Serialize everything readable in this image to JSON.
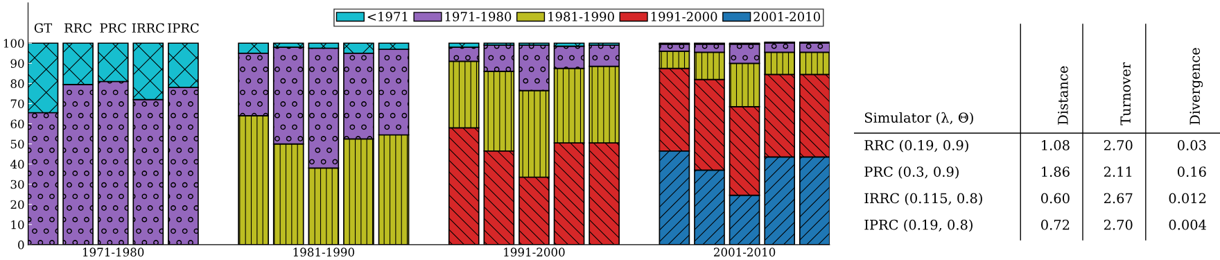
{
  "chart_data": [
    {
      "type": "bar",
      "stacked": true,
      "legend": "top right",
      "grid": false,
      "categories": [
        "GT",
        "RRC",
        "PRC",
        "IRRC",
        "IPRC",
        null,
        null,
        null,
        null,
        null,
        null,
        null,
        null,
        null,
        null,
        null,
        null,
        null,
        null,
        null,
        null,
        null,
        null
      ],
      "series": [
        {
          "name": "2001-2010",
          "color": "#1f77b4",
          "values": [
            null,
            null,
            null,
            null,
            null,
            null,
            null,
            null,
            null,
            null,
            null,
            null,
            null,
            null,
            null,
            null,
            null,
            null,
            46.5,
            37,
            24.5,
            43.5,
            43.5
          ]
        },
        {
          "name": "1991-2000",
          "color": "#d62728",
          "values": [
            null,
            null,
            null,
            null,
            null,
            null,
            null,
            null,
            null,
            null,
            null,
            null,
            58,
            46.5,
            33.5,
            50.5,
            50.5,
            null,
            41,
            45,
            44,
            41,
            41
          ]
        },
        {
          "name": "1981-1990",
          "color": "#bcbd22",
          "values": [
            null,
            null,
            null,
            null,
            null,
            null,
            64,
            50,
            38,
            52.5,
            54.5,
            null,
            33,
            39.5,
            43,
            37,
            38,
            null,
            8.5,
            13.5,
            21.5,
            11,
            11
          ]
        },
        {
          "name": "1971-1980",
          "color": "#9467bd",
          "values": [
            65.5,
            79.5,
            81,
            72,
            78,
            null,
            31,
            48,
            59.5,
            42.5,
            42.5,
            null,
            7,
            13,
            22.5,
            11,
            10.5,
            null,
            3.5,
            4,
            9.5,
            4.5,
            4.5
          ]
        },
        {
          "name": "<1971",
          "color": "#17becf",
          "values": [
            34.5,
            20.5,
            19,
            28,
            22,
            null,
            5,
            2,
            2.5,
            5,
            3,
            null,
            2,
            1,
            1,
            1.5,
            1,
            null,
            0.5,
            0.5,
            0.5,
            0.5,
            0.5
          ]
        }
      ],
      "ylim": [
        0,
        120
      ],
      "yticks": [
        0,
        10,
        20,
        30,
        40,
        50,
        60,
        70,
        80,
        90,
        100
      ],
      "annotations": [
        "1971-1980",
        "1981-1990",
        "1991-2000",
        "2001-2010"
      ]
    },
    {
      "type": "other",
      "categories": [
        "Simulator (λ, Θ)",
        "Distance",
        "Turnover",
        "Divergence"
      ],
      "y_categories": [
        "RRC (0.19, 0.9)",
        "PRC (0.3, 0.9)",
        "IRRC (0.115, 0.8)",
        "IPRC (0.19, 0.8)"
      ],
      "cell_labels": [
        [
          "1.08",
          "2.70",
          "0.03"
        ],
        [
          "1.86",
          "2.11",
          "0.16"
        ],
        [
          "0.60",
          "2.67",
          "0.012"
        ],
        [
          "0.72",
          "2.70",
          "0.004"
        ]
      ]
    }
  ]
}
